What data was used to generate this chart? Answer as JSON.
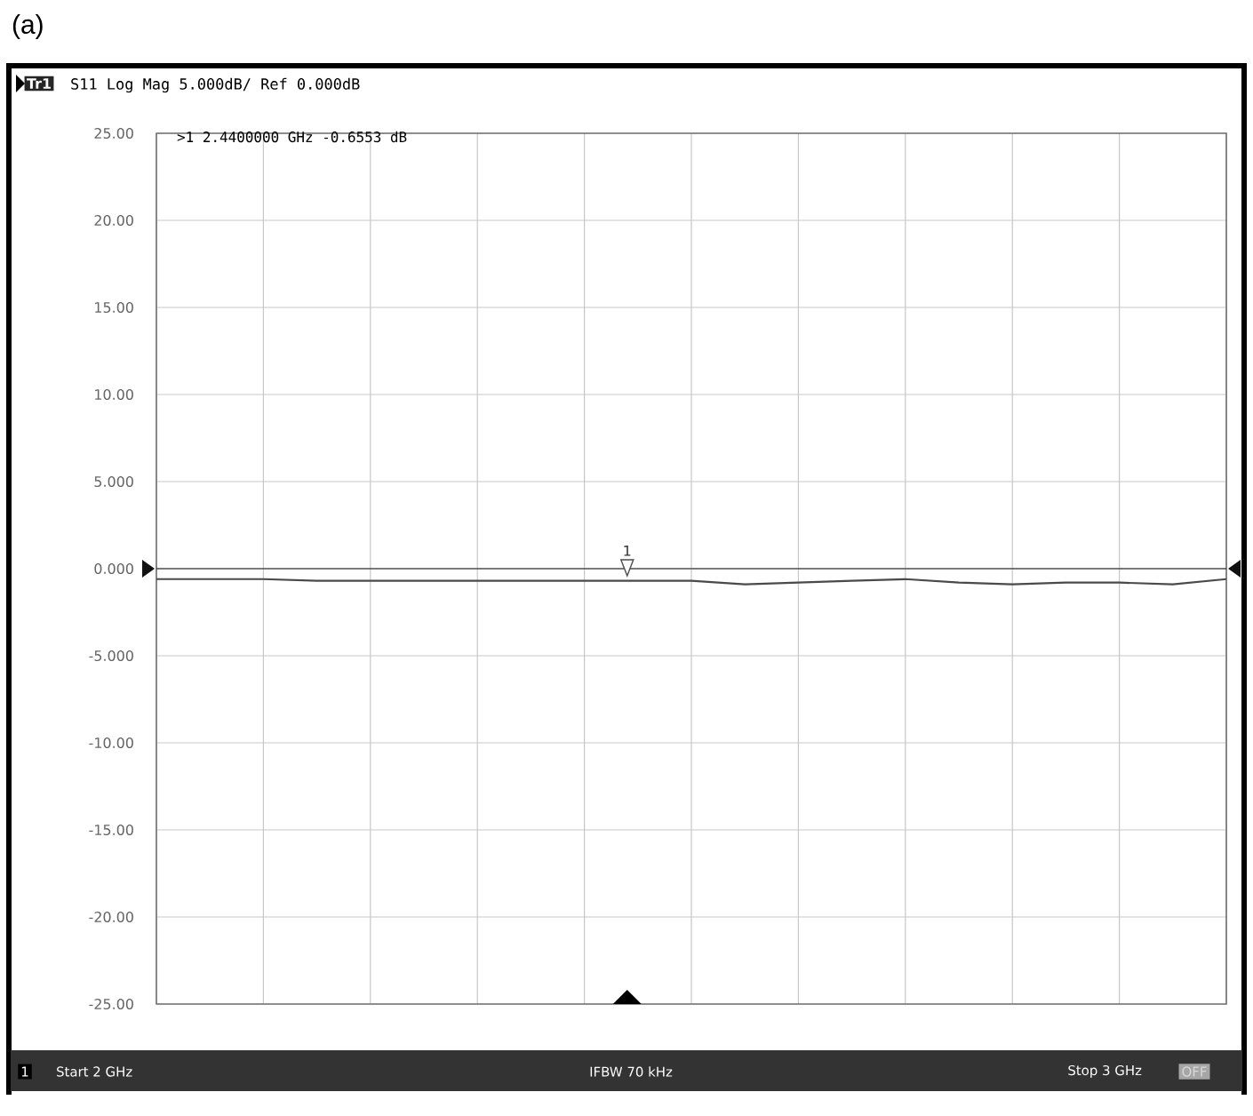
{
  "chart_data": {
    "type": "line",
    "title": "(a)",
    "subtitle": "S11 Log Mag 5.000dB/ Ref 0.000dB",
    "categories": [
      null,
      null,
      null,
      null,
      null,
      null,
      null,
      null,
      null,
      null,
      null,
      null,
      null,
      null,
      null,
      null,
      null,
      null,
      null,
      null,
      null
    ],
    "series": [
      {
        "color": "#4a4a4a",
        "values": [
          -0.6,
          -0.6,
          -0.6,
          -0.7,
          -0.7,
          -0.7,
          -0.7,
          -0.7,
          -0.7,
          -0.7,
          -0.7,
          -0.9,
          -0.8,
          -0.7,
          -0.6,
          -0.8,
          -0.9,
          -0.8,
          -0.8,
          -0.9,
          -0.6
        ]
      }
    ],
    "ylim": [
      -25,
      25
    ],
    "yticks": [
      {
        "value": 25,
        "label": "25.00"
      },
      {
        "value": 20,
        "label": "20.00"
      },
      {
        "value": 15,
        "label": "15.00"
      },
      {
        "value": 10,
        "label": "10.00"
      },
      {
        "value": 5,
        "label": "5.000"
      },
      {
        "value": 0,
        "label": "0.000"
      },
      {
        "value": -5,
        "label": "-5.000"
      },
      {
        "value": -10,
        "label": "-10.00"
      },
      {
        "value": -15,
        "label": "-15.00"
      },
      {
        "value": -20,
        "label": "-20.00"
      },
      {
        "value": -25,
        "label": "-25.00"
      }
    ],
    "grid": true,
    "tick_labels": "y",
    "ref_lines": [
      {
        "axis": "y",
        "value": 0,
        "color": "#111111"
      }
    ],
    "annotations": [
      "Tr1",
      ">1  2.4400000 GHz -0.6553 dB",
      "1",
      "1",
      "Start 2 GHz",
      "IFBW 70 kHz",
      "Stop 3 GHz",
      "OFF"
    ]
  }
}
